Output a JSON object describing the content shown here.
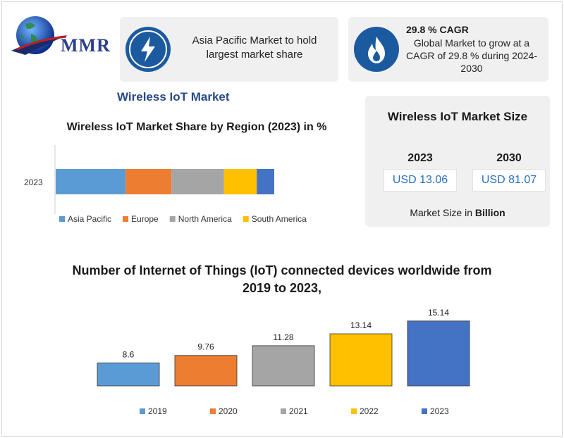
{
  "logo": {
    "text": "MMR"
  },
  "highlights": [
    {
      "icon": "lightning-icon",
      "text": "Asia Pacific Market to hold largest market share"
    },
    {
      "icon": "flame-icon",
      "heading": "29.8 % CAGR",
      "text": "Global Market to grow at a CAGR of 29.8 % during 2024-2030"
    }
  ],
  "main_title": "Wireless IoT Market",
  "market_size": {
    "title": "Wireless IoT Market Size",
    "years": [
      "2023",
      "2030"
    ],
    "values": [
      "USD 13.06",
      "USD 81.07"
    ],
    "note_prefix": "Market Size in",
    "note_bold": "Billion"
  },
  "colors": {
    "asia_pacific": "#5b9bd5",
    "europe": "#ed7d31",
    "north_america": "#a5a5a5",
    "south_america": "#ffc000",
    "other": "#4472c4",
    "icon_bg": "#1c5aa0"
  },
  "chart_data": [
    {
      "type": "bar",
      "orientation": "horizontal-stacked",
      "title": "Wireless IoT Market Share by Region (2023) in %",
      "categories": [
        "2023"
      ],
      "series": [
        {
          "name": "Asia Pacific",
          "values": [
            32
          ],
          "color": "#5b9bd5"
        },
        {
          "name": "Europe",
          "values": [
            21
          ],
          "color": "#ed7d31"
        },
        {
          "name": "North America",
          "values": [
            24
          ],
          "color": "#a5a5a5"
        },
        {
          "name": "South America",
          "values": [
            15
          ],
          "color": "#ffc000"
        },
        {
          "values": [
            8
          ],
          "color": "#4472c4"
        }
      ],
      "legend": "bottom"
    },
    {
      "type": "bar",
      "title": "Number of Internet of Things (IoT) connected devices worldwide from 2019 to 2023,",
      "categories": [
        "2019",
        "2020",
        "2021",
        "2022",
        "2023"
      ],
      "values": [
        8.6,
        9.76,
        11.28,
        13.14,
        15.14
      ],
      "data_labels": [
        "8.6",
        "9.76",
        "11.28",
        "13.14",
        "15.14"
      ],
      "colors": [
        "#5b9bd5",
        "#ed7d31",
        "#a5a5a5",
        "#ffc000",
        "#4472c4"
      ],
      "ylim": [
        5,
        16
      ],
      "legend": "bottom"
    }
  ]
}
